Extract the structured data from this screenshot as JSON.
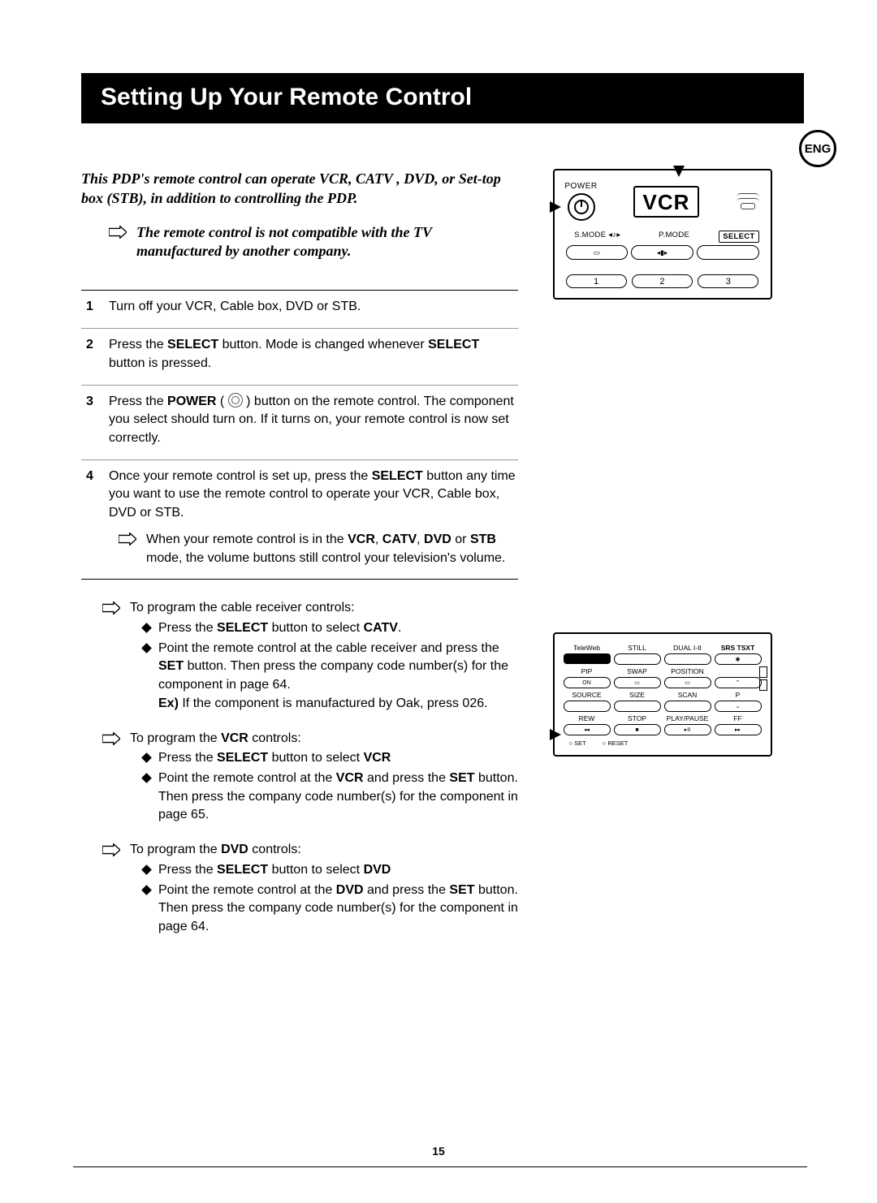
{
  "title": "Setting Up Your Remote Control",
  "lang_badge": "ENG",
  "intro": "This PDP's remote control can operate VCR, CATV , DVD, or Set-top box (STB), in addition to controlling the PDP.",
  "compat_note": "The remote control is not compatible with the TV manufactured by another company.",
  "steps": [
    {
      "num": "1",
      "html": "Turn off your VCR, Cable box, DVD or STB."
    },
    {
      "num": "2",
      "html": "Press the <b>SELECT</b> button. Mode is changed whenever <b>SELECT</b> button is pressed."
    },
    {
      "num": "3",
      "html": "Press the <b>POWER</b> ( <span class=\"pwr-icon\" data-name=\"power-icon\"></span> ) button on the remote control. The component you select should turn on. If it turns on, your remote control is now set correctly."
    },
    {
      "num": "4",
      "html": "Once your remote control is set up, press the <b>SELECT</b> button any time you want to use the remote control to operate your VCR, Cable box, DVD or STB.",
      "sub": "When your remote control is in the <b>VCR</b>, <b>CATV</b>, <b>DVD</b> or <b>STB</b> mode, the volume buttons still control your television's volume."
    }
  ],
  "programs": [
    {
      "lead": "To program the cable receiver controls:",
      "bullets": [
        "Press the <b>SELECT</b> button to select <b>CATV</b>.",
        "Point the remote control at the cable receiver and press the <b>SET</b> button. Then press the company code number(s) for the component in page 64.<br><b>Ex)</b> If the component is manufactured by Oak, press 026."
      ]
    },
    {
      "lead": "To program the <b>VCR</b> controls:",
      "bullets": [
        "Press the <b>SELECT</b> button to select <b>VCR</b>",
        "Point the remote control at the <b>VCR</b> and press the <b>SET</b> button. Then press the company code number(s) for the component in page 65."
      ]
    },
    {
      "lead": "To program the <b>DVD</b> controls:",
      "bullets": [
        "Press the <b>SELECT</b> button to select <b>DVD</b>",
        "Point the remote control at the <b>DVD</b> and press the <b>SET</b> button. Then press the company code number(s) for the component in page 64."
      ]
    }
  ],
  "remote_top": {
    "power": "POWER",
    "mode": "VCR",
    "row_labels": [
      "S.MODE ◂♪▸",
      "P.MODE",
      "SELECT"
    ],
    "icons": [
      "▭",
      "◂▮▸",
      ""
    ],
    "numbers": [
      "1",
      "2",
      "3"
    ]
  },
  "remote_bottom": {
    "r1": [
      "TeleWeb",
      "STILL",
      "DUAL I-II",
      "SRS TSXT"
    ],
    "r2": [
      "PIP",
      "SWAP",
      "POSITION",
      ""
    ],
    "b2": [
      "ON",
      "▭",
      "▭",
      "⌃"
    ],
    "r3": [
      "SOURCE",
      "SIZE",
      "SCAN",
      "P"
    ],
    "b3": [
      "",
      "",
      "",
      "⌄"
    ],
    "r4": [
      "REW",
      "STOP",
      "PLAY/PAUSE",
      "FF"
    ],
    "b4": [
      "◂◂",
      "■",
      "▸II",
      "▸▸"
    ],
    "set": [
      "SET",
      "RESET"
    ]
  },
  "page_number": "15"
}
